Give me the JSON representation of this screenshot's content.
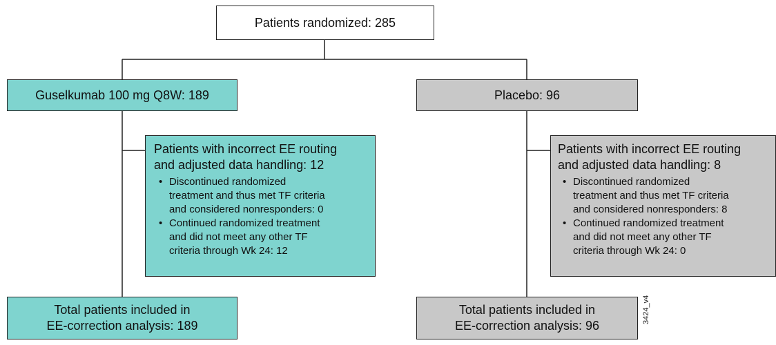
{
  "nodes": [
    {
      "label": [
        "Patients randomized: 285"
      ]
    },
    {
      "label": [
        "Guselkumab 100 mg Q8W: 189"
      ]
    },
    {
      "label": [
        "Placebo: 96"
      ]
    },
    {
      "heading": [
        "Patients with incorrect EE routing",
        "and adjusted data handling: 12"
      ],
      "bullets": [
        [
          "Discontinued randomized",
          "treatment and thus met TF criteria",
          "and considered nonresponders: 0"
        ],
        [
          "Continued randomized treatment",
          "and did not meet any other TF",
          "criteria through Wk 24: 12"
        ]
      ]
    },
    {
      "heading": [
        "Patients with incorrect EE routing",
        "and adjusted data handling: 8"
      ],
      "bullets": [
        [
          "Discontinued randomized",
          "treatment and thus met TF criteria",
          "and considered nonresponders: 8"
        ],
        [
          "Continued randomized treatment",
          "and did not meet any other TF",
          "criteria through Wk 24: 0"
        ]
      ]
    },
    {
      "label": [
        "Total patients included in",
        "EE-correction analysis: 189"
      ]
    },
    {
      "label": [
        "Total patients included in",
        "EE-correction analysis: 96"
      ]
    }
  ],
  "figure_id": "3424_v4"
}
